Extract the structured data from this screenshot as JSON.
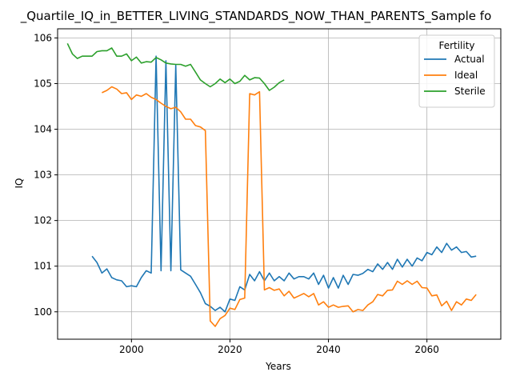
{
  "chart_data": {
    "type": "line",
    "title": "_Quartile_IQ_in_BETTER_LIVING_STANDARDS_NOW_THAN_PARENTS_Sample fo",
    "xlabel": "Years",
    "ylabel": "IQ",
    "xlim": [
      1985,
      2075
    ],
    "ylim": [
      99.4,
      106.2
    ],
    "xticks": [
      2000,
      2020,
      2040,
      2060
    ],
    "yticks": [
      100,
      101,
      102,
      103,
      104,
      105,
      106
    ],
    "grid": true,
    "legend": {
      "title": "Fertility",
      "position": "top-right"
    },
    "series": [
      {
        "name": "Actual",
        "color": "#1f77b4",
        "x": [
          1992,
          1993,
          1994,
          1995,
          1996,
          1997,
          1998,
          1999,
          2000,
          2001,
          2002,
          2003,
          2004,
          2005,
          2006,
          2007,
          2008,
          2009,
          2010,
          2011,
          2012,
          2013,
          2014,
          2015,
          2016,
          2017,
          2018,
          2019,
          2020,
          2021,
          2022,
          2023,
          2024,
          2025,
          2026,
          2027,
          2028,
          2029,
          2030,
          2031,
          2032,
          2033,
          2034,
          2035,
          2036,
          2037,
          2038,
          2039,
          2040,
          2041,
          2042,
          2043,
          2044,
          2045,
          2046,
          2047,
          2048,
          2049,
          2050,
          2051,
          2052,
          2053,
          2054,
          2055,
          2056,
          2057,
          2058,
          2059,
          2060,
          2061,
          2062,
          2063,
          2064,
          2065,
          2066,
          2067,
          2068,
          2069,
          2070
        ],
        "y": [
          101.22,
          101.08,
          100.85,
          100.94,
          100.75,
          100.7,
          100.68,
          100.55,
          100.57,
          100.55,
          100.75,
          100.9,
          100.85,
          105.6,
          100.9,
          105.5,
          100.9,
          105.4,
          100.92,
          100.85,
          100.78,
          100.6,
          100.42,
          100.18,
          100.12,
          100.03,
          100.1,
          100.0,
          100.28,
          100.25,
          100.55,
          100.48,
          100.82,
          100.68,
          100.88,
          100.68,
          100.85,
          100.68,
          100.77,
          100.68,
          100.85,
          100.72,
          100.77,
          100.77,
          100.72,
          100.85,
          100.6,
          100.8,
          100.52,
          100.75,
          100.52,
          100.8,
          100.6,
          100.82,
          100.8,
          100.84,
          100.93,
          100.88,
          101.05,
          100.93,
          101.08,
          100.93,
          101.15,
          100.98,
          101.15,
          101.0,
          101.18,
          101.12,
          101.3,
          101.25,
          101.42,
          101.3,
          101.5,
          101.35,
          101.42,
          101.3,
          101.32,
          101.2,
          101.22
        ]
      },
      {
        "name": "Ideal",
        "color": "#ff7f0e",
        "x": [
          1994,
          1995,
          1996,
          1997,
          1998,
          1999,
          2000,
          2001,
          2002,
          2003,
          2004,
          2005,
          2006,
          2007,
          2008,
          2009,
          2010,
          2011,
          2012,
          2013,
          2014,
          2015,
          2016,
          2017,
          2018,
          2019,
          2020,
          2021,
          2022,
          2023,
          2024,
          2025,
          2026,
          2027,
          2028,
          2029,
          2030,
          2031,
          2032,
          2033,
          2034,
          2035,
          2036,
          2037,
          2038,
          2039,
          2040,
          2041,
          2042,
          2043,
          2044,
          2045,
          2046,
          2047,
          2048,
          2049,
          2050,
          2051,
          2052,
          2053,
          2054,
          2055,
          2056,
          2057,
          2058,
          2059,
          2060,
          2061,
          2062,
          2063,
          2064,
          2065,
          2066,
          2067,
          2068,
          2069,
          2070
        ],
        "y": [
          104.8,
          104.85,
          104.93,
          104.88,
          104.78,
          104.8,
          104.65,
          104.75,
          104.72,
          104.78,
          104.7,
          104.65,
          104.57,
          104.5,
          104.45,
          104.48,
          104.38,
          104.22,
          104.22,
          104.08,
          104.05,
          103.97,
          99.8,
          99.68,
          99.85,
          99.92,
          100.08,
          100.05,
          100.27,
          100.3,
          104.78,
          104.75,
          104.82,
          100.48,
          100.53,
          100.47,
          100.5,
          100.35,
          100.45,
          100.3,
          100.35,
          100.4,
          100.33,
          100.4,
          100.15,
          100.22,
          100.1,
          100.15,
          100.1,
          100.12,
          100.13,
          100.0,
          100.05,
          100.03,
          100.15,
          100.22,
          100.38,
          100.35,
          100.47,
          100.48,
          100.67,
          100.6,
          100.68,
          100.6,
          100.67,
          100.53,
          100.52,
          100.35,
          100.37,
          100.13,
          100.23,
          100.03,
          100.22,
          100.15,
          100.28,
          100.25,
          100.38
        ]
      },
      {
        "name": "Sterile",
        "color": "#2ca02c",
        "x": [
          1987,
          1988,
          1989,
          1990,
          1991,
          1992,
          1993,
          1994,
          1995,
          1996,
          1997,
          1998,
          1999,
          2000,
          2001,
          2002,
          2003,
          2004,
          2005,
          2006,
          2007,
          2008,
          2009,
          2010,
          2011,
          2012,
          2013,
          2014,
          2015,
          2016,
          2017,
          2018,
          2019,
          2020,
          2021,
          2022,
          2023,
          2024,
          2025,
          2026,
          2027,
          2028,
          2029,
          2030,
          2031
        ],
        "y": [
          105.88,
          105.65,
          105.55,
          105.6,
          105.6,
          105.6,
          105.7,
          105.72,
          105.72,
          105.78,
          105.6,
          105.6,
          105.65,
          105.5,
          105.58,
          105.45,
          105.48,
          105.47,
          105.57,
          105.52,
          105.45,
          105.43,
          105.42,
          105.42,
          105.38,
          105.42,
          105.25,
          105.08,
          105.0,
          104.93,
          105.0,
          105.1,
          105.02,
          105.1,
          105.0,
          105.05,
          105.18,
          105.08,
          105.13,
          105.12,
          105.0,
          104.85,
          104.92,
          105.02,
          105.08
        ]
      }
    ]
  }
}
